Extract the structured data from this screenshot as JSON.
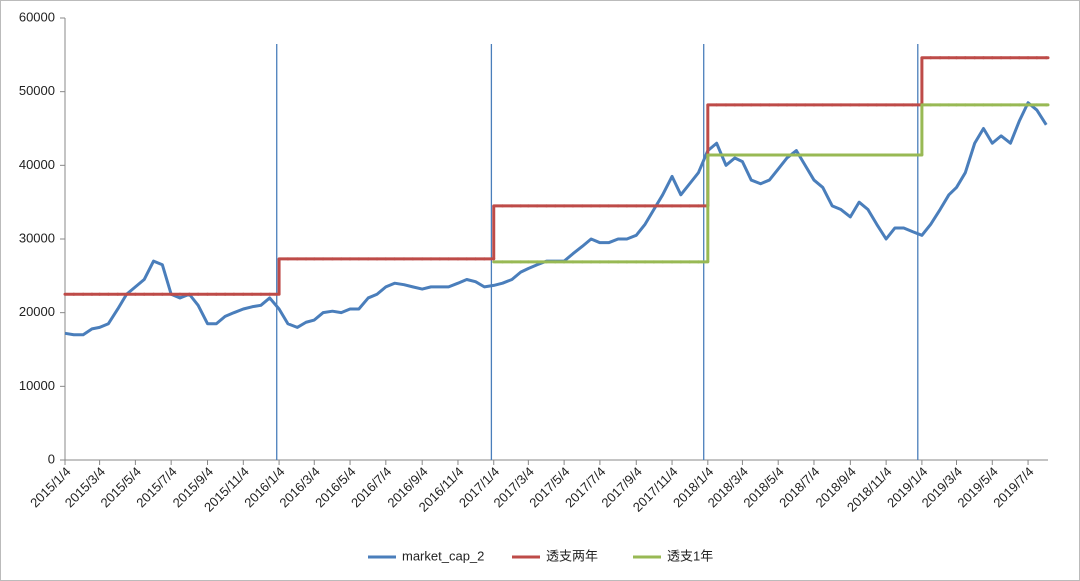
{
  "chart_data": {
    "type": "line",
    "x": [
      "2015/1/4",
      "2015/1/19",
      "2015/2/4",
      "2015/2/19",
      "2015/3/4",
      "2015/3/19",
      "2015/4/4",
      "2015/4/19",
      "2015/5/4",
      "2015/5/19",
      "2015/6/4",
      "2015/6/19",
      "2015/7/4",
      "2015/7/19",
      "2015/8/4",
      "2015/8/19",
      "2015/9/4",
      "2015/9/19",
      "2015/10/4",
      "2015/10/19",
      "2015/11/4",
      "2015/11/19",
      "2015/12/4",
      "2015/12/19",
      "2016/1/4",
      "2016/1/19",
      "2016/2/4",
      "2016/2/19",
      "2016/3/4",
      "2016/3/19",
      "2016/4/4",
      "2016/4/19",
      "2016/5/4",
      "2016/5/19",
      "2016/6/4",
      "2016/6/19",
      "2016/7/4",
      "2016/7/19",
      "2016/8/4",
      "2016/8/19",
      "2016/9/4",
      "2016/9/19",
      "2016/10/4",
      "2016/10/19",
      "2016/11/4",
      "2016/11/19",
      "2016/12/4",
      "2016/12/19",
      "2017/1/4",
      "2017/1/19",
      "2017/2/4",
      "2017/2/19",
      "2017/3/4",
      "2017/3/19",
      "2017/4/4",
      "2017/4/19",
      "2017/5/4",
      "2017/5/19",
      "2017/6/4",
      "2017/6/19",
      "2017/7/4",
      "2017/7/19",
      "2017/8/4",
      "2017/8/19",
      "2017/9/4",
      "2017/9/19",
      "2017/10/4",
      "2017/10/19",
      "2017/11/4",
      "2017/11/19",
      "2017/12/4",
      "2017/12/19",
      "2018/1/4",
      "2018/1/19",
      "2018/2/4",
      "2018/2/19",
      "2018/3/4",
      "2018/3/19",
      "2018/4/4",
      "2018/4/19",
      "2018/5/4",
      "2018/5/19",
      "2018/6/4",
      "2018/6/19",
      "2018/7/4",
      "2018/7/19",
      "2018/8/4",
      "2018/8/19",
      "2018/9/4",
      "2018/9/19",
      "2018/10/4",
      "2018/10/19",
      "2018/11/4",
      "2018/11/19",
      "2018/12/4",
      "2018/12/19",
      "2019/1/4",
      "2019/1/19",
      "2019/2/4",
      "2019/2/19",
      "2019/3/4",
      "2019/3/19",
      "2019/4/4",
      "2019/4/19",
      "2019/5/4",
      "2019/5/19",
      "2019/6/4",
      "2019/6/19",
      "2019/7/4",
      "2019/7/19",
      "2019/8/4"
    ],
    "series": [
      {
        "name": "market_cap_2",
        "color": "#4a7ebb",
        "shape": "linear",
        "values": [
          17200,
          17000,
          17000,
          17800,
          18000,
          18500,
          20500,
          22500,
          23500,
          24500,
          27000,
          26500,
          22500,
          22000,
          22500,
          21000,
          18500,
          18500,
          19500,
          20000,
          20500,
          20800,
          21000,
          22000,
          20500,
          18500,
          18000,
          18700,
          19000,
          20000,
          20200,
          20000,
          20500,
          20500,
          22000,
          22500,
          23500,
          24000,
          23800,
          23500,
          23200,
          23500,
          23500,
          23500,
          24000,
          24500,
          24200,
          23500,
          23700,
          24000,
          24500,
          25500,
          26000,
          26500,
          27000,
          27000,
          27000,
          28000,
          29000,
          30000,
          29500,
          29500,
          30000,
          30000,
          30500,
          32000,
          34000,
          36000,
          38500,
          36000,
          37500,
          39000,
          42000,
          43000,
          40000,
          41000,
          40500,
          38000,
          37500,
          38000,
          39500,
          41000,
          42000,
          40000,
          38000,
          37000,
          34500,
          34000,
          33000,
          35000,
          34000,
          32000,
          30000,
          31500,
          31500,
          31000,
          30500,
          32000,
          34000,
          36000,
          37000,
          39000,
          43000,
          45000,
          43000,
          44000,
          43000,
          46000,
          48500,
          47500,
          45500
        ]
      },
      {
        "name": "透支两年",
        "color": "#be4b48",
        "shape": "step",
        "values": [
          22500,
          22500,
          22500,
          22500,
          22500,
          22500,
          22500,
          22500,
          22500,
          22500,
          22500,
          22500,
          22500,
          22500,
          22500,
          22500,
          22500,
          22500,
          22500,
          22500,
          22500,
          22500,
          22500,
          22500,
          27300,
          27300,
          27300,
          27300,
          27300,
          27300,
          27300,
          27300,
          27300,
          27300,
          27300,
          27300,
          27300,
          27300,
          27300,
          27300,
          27300,
          27300,
          27300,
          27300,
          27300,
          27300,
          27300,
          27300,
          34500,
          34500,
          34500,
          34500,
          34500,
          34500,
          34500,
          34500,
          34500,
          34500,
          34500,
          34500,
          34500,
          34500,
          34500,
          34500,
          34500,
          34500,
          34500,
          34500,
          34500,
          34500,
          34500,
          34500,
          48200,
          48200,
          48200,
          48200,
          48200,
          48200,
          48200,
          48200,
          48200,
          48200,
          48200,
          48200,
          48200,
          48200,
          48200,
          48200,
          48200,
          48200,
          48200,
          48200,
          48200,
          48200,
          48200,
          48200,
          54600,
          54600,
          54600,
          54600,
          54600,
          54600,
          54600,
          54600,
          54600,
          54600,
          54600,
          54600,
          54600,
          54600,
          54600
        ]
      },
      {
        "name": "透支1年",
        "color": "#98b954",
        "shape": "step",
        "values": [
          null,
          null,
          null,
          null,
          null,
          null,
          null,
          null,
          null,
          null,
          null,
          null,
          null,
          null,
          null,
          null,
          null,
          null,
          null,
          null,
          null,
          null,
          null,
          null,
          null,
          null,
          null,
          null,
          null,
          null,
          null,
          null,
          null,
          null,
          null,
          null,
          null,
          null,
          null,
          null,
          null,
          null,
          null,
          null,
          null,
          null,
          null,
          null,
          26900,
          26900,
          26900,
          26900,
          26900,
          26900,
          26900,
          26900,
          26900,
          26900,
          26900,
          26900,
          26900,
          26900,
          26900,
          26900,
          26900,
          26900,
          26900,
          26900,
          26900,
          26900,
          26900,
          26900,
          41400,
          41400,
          41400,
          41400,
          41400,
          41400,
          41400,
          41400,
          41400,
          41400,
          41400,
          41400,
          41400,
          41400,
          41400,
          41400,
          41400,
          41400,
          41400,
          41400,
          41400,
          41400,
          41400,
          41400,
          48200,
          48200,
          48200,
          48200,
          48200,
          48200,
          48200,
          48200,
          48200,
          48200,
          48200,
          48200,
          48200,
          48200,
          48200
        ]
      }
    ],
    "vlines": [
      "2015/12/31",
      "2016/12/31",
      "2017/12/28",
      "2018/12/28"
    ],
    "vline_color": "#4a7ebb",
    "xlim": [
      "2015/1/4",
      "2019/8/7"
    ],
    "xticks": [
      "2015/1/4",
      "2015/3/4",
      "2015/5/4",
      "2015/7/4",
      "2015/9/4",
      "2015/11/4",
      "2016/1/4",
      "2016/3/4",
      "2016/5/4",
      "2016/7/4",
      "2016/9/4",
      "2016/11/4",
      "2017/1/4",
      "2017/3/4",
      "2017/5/4",
      "2017/7/4",
      "2017/9/4",
      "2017/11/4",
      "2018/1/4",
      "2018/3/4",
      "2018/5/4",
      "2018/7/4",
      "2018/9/4",
      "2018/11/4",
      "2019/1/4",
      "2019/3/4",
      "2019/5/4",
      "2019/7/4"
    ],
    "ylim": [
      0,
      60000
    ],
    "yticks": [
      0,
      10000,
      20000,
      30000,
      40000,
      50000,
      60000
    ],
    "grid": false,
    "legend": "bottom"
  }
}
